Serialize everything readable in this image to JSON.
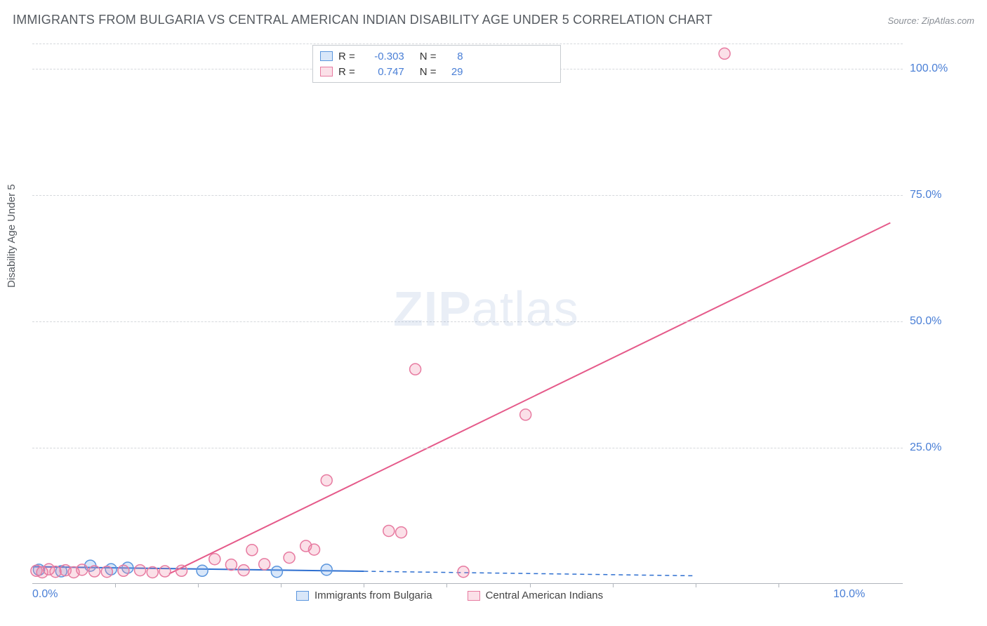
{
  "title": "IMMIGRANTS FROM BULGARIA VS CENTRAL AMERICAN INDIAN DISABILITY AGE UNDER 5 CORRELATION CHART",
  "source": "Source: ZipAtlas.com",
  "ylabel": "Disability Age Under 5",
  "watermark_bold": "ZIP",
  "watermark_light": "atlas",
  "chart": {
    "type": "scatter",
    "xlim": [
      0,
      10.5
    ],
    "ylim": [
      -2,
      105
    ],
    "xticks": [
      0,
      10
    ],
    "xtick_labels": [
      "0.0%",
      "10.0%"
    ],
    "xtick_minors": [
      1,
      2,
      3,
      4,
      5,
      6,
      7,
      8,
      9
    ],
    "yticks": [
      25,
      50,
      75,
      100
    ],
    "ytick_labels": [
      "25.0%",
      "50.0%",
      "75.0%",
      "100.0%"
    ],
    "background_color": "#ffffff",
    "grid_color": "#d5d8dc",
    "axis_color": "#b0b5bc",
    "marker_radius": 8,
    "marker_stroke_width": 1.5,
    "line_width": 2,
    "dash_pattern": "6 5",
    "series": [
      {
        "name": "Immigrants from Bulgaria",
        "fill": "rgba(120,170,235,0.28)",
        "stroke": "#5a95dd",
        "line_color": "#2e6fd0",
        "R": "-0.303",
        "N": "8",
        "points": [
          {
            "x": 0.08,
            "y": 0.8
          },
          {
            "x": 0.35,
            "y": 0.5
          },
          {
            "x": 0.7,
            "y": 1.6
          },
          {
            "x": 0.95,
            "y": 0.9
          },
          {
            "x": 1.15,
            "y": 1.2
          },
          {
            "x": 2.05,
            "y": 0.6
          },
          {
            "x": 2.95,
            "y": 0.4
          },
          {
            "x": 3.55,
            "y": 0.8
          }
        ],
        "trend": {
          "x1": 0.0,
          "y1": 1.4,
          "x2": 4.0,
          "y2": 0.5
        },
        "trend_dash": {
          "x1": 4.0,
          "y1": 0.5,
          "x2": 8.0,
          "y2": -0.4
        }
      },
      {
        "name": "Central American Indians",
        "fill": "rgba(240,130,165,0.25)",
        "stroke": "#e77aa0",
        "line_color": "#e55a8a",
        "R": "0.747",
        "N": "29",
        "points": [
          {
            "x": 0.05,
            "y": 0.6
          },
          {
            "x": 0.12,
            "y": 0.3
          },
          {
            "x": 0.2,
            "y": 0.9
          },
          {
            "x": 0.28,
            "y": 0.4
          },
          {
            "x": 0.4,
            "y": 0.7
          },
          {
            "x": 0.5,
            "y": 0.3
          },
          {
            "x": 0.6,
            "y": 0.8
          },
          {
            "x": 0.75,
            "y": 0.5
          },
          {
            "x": 0.9,
            "y": 0.4
          },
          {
            "x": 1.1,
            "y": 0.6
          },
          {
            "x": 1.3,
            "y": 0.7
          },
          {
            "x": 1.45,
            "y": 0.3
          },
          {
            "x": 1.6,
            "y": 0.5
          },
          {
            "x": 1.8,
            "y": 0.6
          },
          {
            "x": 2.2,
            "y": 2.9
          },
          {
            "x": 2.4,
            "y": 1.8
          },
          {
            "x": 2.55,
            "y": 0.7
          },
          {
            "x": 2.65,
            "y": 4.7
          },
          {
            "x": 2.8,
            "y": 1.9
          },
          {
            "x": 3.1,
            "y": 3.2
          },
          {
            "x": 3.3,
            "y": 5.5
          },
          {
            "x": 3.4,
            "y": 4.8
          },
          {
            "x": 3.55,
            "y": 18.5
          },
          {
            "x": 4.3,
            "y": 8.5
          },
          {
            "x": 4.45,
            "y": 8.2
          },
          {
            "x": 4.62,
            "y": 40.5
          },
          {
            "x": 5.2,
            "y": 0.4
          },
          {
            "x": 5.95,
            "y": 31.5
          },
          {
            "x": 8.35,
            "y": 103.0
          }
        ],
        "trend": {
          "x1": 1.65,
          "y1": 0.0,
          "x2": 10.35,
          "y2": 69.5
        }
      }
    ]
  },
  "legend": {
    "items": [
      {
        "label": "Immigrants from Bulgaria"
      },
      {
        "label": "Central American Indians"
      }
    ]
  }
}
